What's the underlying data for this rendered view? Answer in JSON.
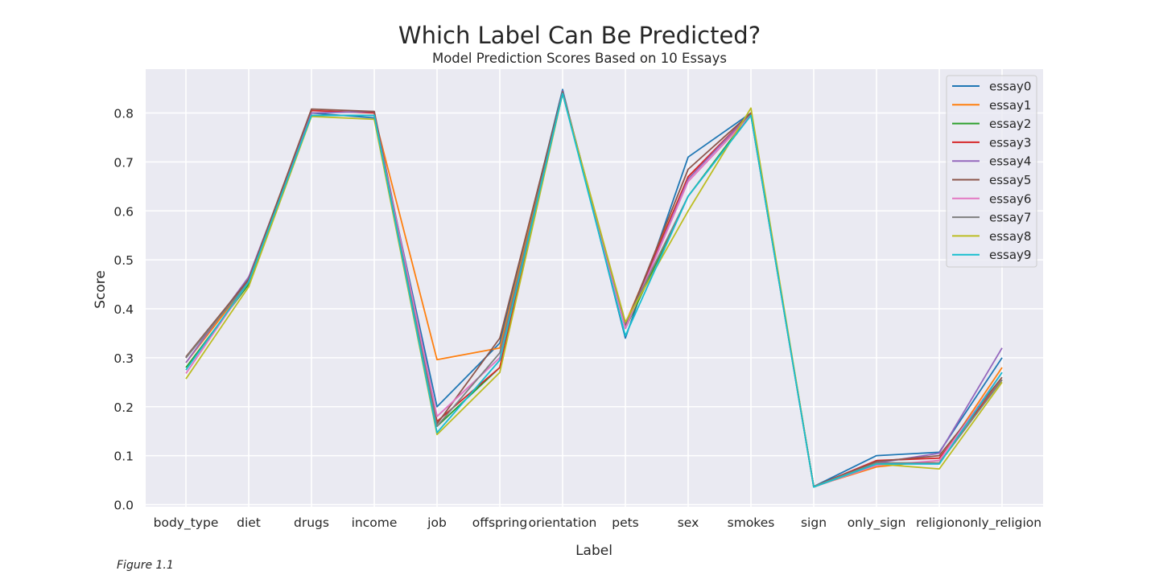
{
  "caption": "Figure 1.1",
  "chart_data": {
    "type": "line",
    "title": "Which Label Can Be Predicted?",
    "subtitle": "Model Prediction Scores Based on 10 Essays",
    "xlabel": "Label",
    "ylabel": "Score",
    "ylim": [
      0,
      0.88
    ],
    "yticks": [
      "0.0",
      "0.1",
      "0.2",
      "0.3",
      "0.4",
      "0.5",
      "0.6",
      "0.7",
      "0.8"
    ],
    "grid": true,
    "legend_position": "top-right",
    "categories": [
      "body_type",
      "diet",
      "drugs",
      "income",
      "job",
      "offspring",
      "orientation",
      "pets",
      "sex",
      "smokes",
      "sign",
      "only_sign",
      "religion",
      "only_religion"
    ],
    "series": [
      {
        "name": "essay0",
        "color": "#1f77b4",
        "values": [
          0.3,
          0.46,
          0.8,
          0.79,
          0.2,
          0.33,
          0.848,
          0.34,
          0.71,
          0.8,
          0.037,
          0.1,
          0.107,
          0.3
        ]
      },
      {
        "name": "essay1",
        "color": "#ff7f0e",
        "values": [
          0.29,
          0.455,
          0.795,
          0.795,
          0.296,
          0.32,
          0.84,
          0.37,
          0.67,
          0.795,
          0.037,
          0.077,
          0.09,
          0.28
        ]
      },
      {
        "name": "essay2",
        "color": "#2ca02c",
        "values": [
          0.28,
          0.45,
          0.795,
          0.795,
          0.16,
          0.28,
          0.84,
          0.36,
          0.63,
          0.8,
          0.036,
          0.085,
          0.085,
          0.255
        ]
      },
      {
        "name": "essay3",
        "color": "#d62728",
        "values": [
          0.3,
          0.46,
          0.805,
          0.8,
          0.17,
          0.28,
          0.842,
          0.365,
          0.67,
          0.8,
          0.037,
          0.09,
          0.095,
          0.255
        ]
      },
      {
        "name": "essay4",
        "color": "#9467bd",
        "values": [
          0.29,
          0.465,
          0.8,
          0.803,
          0.18,
          0.3,
          0.845,
          0.36,
          0.665,
          0.8,
          0.037,
          0.085,
          0.105,
          0.32
        ]
      },
      {
        "name": "essay5",
        "color": "#8c564b",
        "values": [
          0.302,
          0.46,
          0.808,
          0.803,
          0.165,
          0.34,
          0.843,
          0.365,
          0.685,
          0.8,
          0.037,
          0.088,
          0.1,
          0.26
        ]
      },
      {
        "name": "essay6",
        "color": "#e377c2",
        "values": [
          0.268,
          0.455,
          0.795,
          0.795,
          0.18,
          0.3,
          0.84,
          0.36,
          0.66,
          0.795,
          0.036,
          0.08,
          0.09,
          0.27
        ]
      },
      {
        "name": "essay7",
        "color": "#7f7f7f",
        "values": [
          0.3,
          0.455,
          0.795,
          0.795,
          0.16,
          0.31,
          0.84,
          0.37,
          0.63,
          0.795,
          0.037,
          0.085,
          0.085,
          0.255
        ]
      },
      {
        "name": "essay8",
        "color": "#bcbd22",
        "values": [
          0.257,
          0.445,
          0.793,
          0.787,
          0.143,
          0.27,
          0.84,
          0.373,
          0.6,
          0.81,
          0.036,
          0.083,
          0.073,
          0.25
        ]
      },
      {
        "name": "essay9",
        "color": "#17becf",
        "values": [
          0.275,
          0.455,
          0.795,
          0.795,
          0.147,
          0.295,
          0.84,
          0.345,
          0.63,
          0.795,
          0.036,
          0.083,
          0.083,
          0.27
        ]
      }
    ]
  }
}
